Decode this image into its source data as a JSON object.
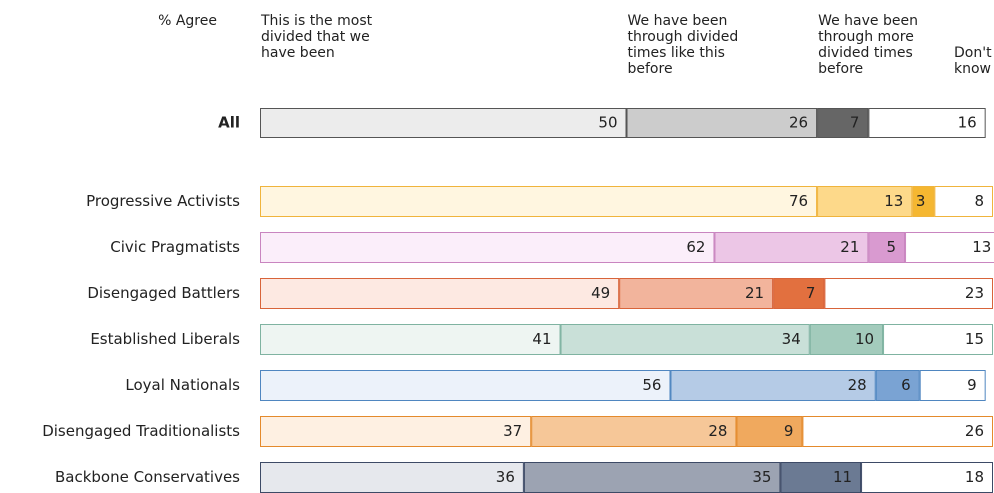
{
  "chart_data": {
    "type": "stacked-bar",
    "value_header": "% Agree",
    "categories": [
      "All",
      "Progressive Activists",
      "Civic Pragmatists",
      "Disengaged Battlers",
      "Established Liberals",
      "Loyal Nationals",
      "Disengaged Traditionalists",
      "Backbone Conservatives"
    ],
    "xlim": [
      0,
      100
    ],
    "border_colors": [
      "#555555",
      "#f0b43c",
      "#c985c0",
      "#d8643a",
      "#7fb3a1",
      "#4f86c0",
      "#e48a2c",
      "#3d4a66"
    ],
    "series": [
      {
        "name": "This is the most divided that we have been",
        "colors": [
          "#ececec",
          "#fff6e0",
          "#fbeefa",
          "#fde9e2",
          "#eef5f2",
          "#ecf2fa",
          "#fef0e2",
          "#e6e8ed"
        ],
        "values": [
          50,
          76,
          62,
          49,
          41,
          56,
          37,
          36
        ]
      },
      {
        "name": "We have been through divided times like this before",
        "colors": [
          "#cccccc",
          "#fdd98a",
          "#ecc6e6",
          "#f2b49c",
          "#c9e0d8",
          "#b5cbe6",
          "#f6c798",
          "#9ca3b2"
        ],
        "values": [
          26,
          13,
          21,
          21,
          34,
          28,
          28,
          35
        ]
      },
      {
        "name": "We have been through more divided times before",
        "colors": [
          "#666666",
          "#f5b731",
          "#d99ad0",
          "#e2703f",
          "#a3cbbc",
          "#7aa3d3",
          "#f0a95e",
          "#6b7a93"
        ],
        "values": [
          7,
          3,
          5,
          7,
          10,
          6,
          9,
          11
        ]
      },
      {
        "name": "Don't know",
        "colors": [
          "#ffffff",
          "#ffffff",
          "#ffffff",
          "#ffffff",
          "#ffffff",
          "#ffffff",
          "#ffffff",
          "#ffffff"
        ],
        "values": [
          16,
          8,
          13,
          23,
          15,
          9,
          26,
          18
        ]
      }
    ]
  }
}
